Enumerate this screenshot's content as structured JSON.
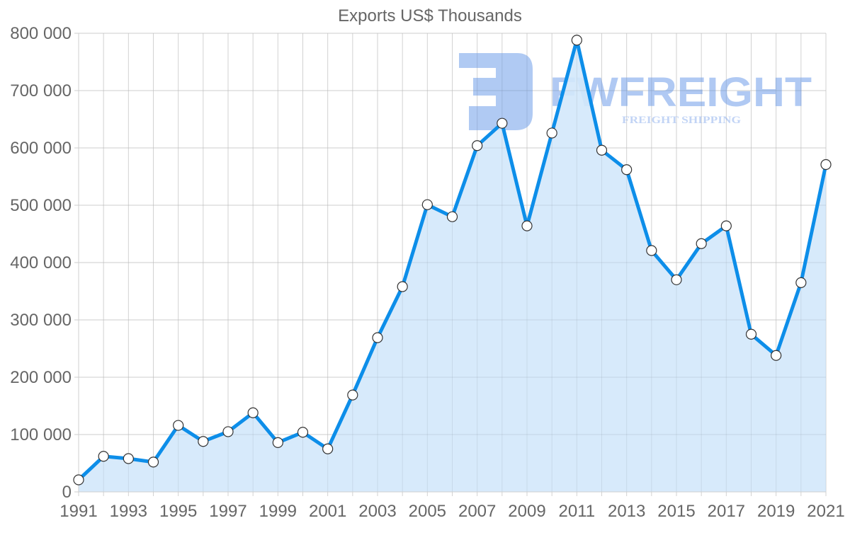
{
  "chart_data": {
    "type": "area",
    "title": "Exports US$ Thousands",
    "xlabel": "",
    "ylabel": "",
    "x": [
      1991,
      1992,
      1993,
      1994,
      1995,
      1996,
      1997,
      1998,
      1999,
      2000,
      2001,
      2002,
      2003,
      2004,
      2005,
      2006,
      2007,
      2008,
      2009,
      2010,
      2011,
      2012,
      2013,
      2014,
      2015,
      2016,
      2017,
      2018,
      2019,
      2020,
      2021
    ],
    "series": [
      {
        "name": "Exports US$ Thousands",
        "values": [
          21000,
          62000,
          58000,
          52000,
          116000,
          88000,
          105000,
          138000,
          86000,
          104000,
          75000,
          169000,
          269000,
          358000,
          501000,
          480000,
          604000,
          643000,
          464000,
          626000,
          788000,
          596000,
          562000,
          421000,
          370000,
          433000,
          464000,
          275000,
          238000,
          365000,
          571000
        ]
      }
    ],
    "x_tick_labels": [
      "1991",
      "1993",
      "1995",
      "1997",
      "1999",
      "2001",
      "2003",
      "2005",
      "2007",
      "2009",
      "2011",
      "2013",
      "2015",
      "2017",
      "2019",
      "2021"
    ],
    "y_tick_labels": [
      "0",
      "100 000",
      "200 000",
      "300 000",
      "400 000",
      "500 000",
      "600 000",
      "700 000",
      "800 000"
    ],
    "ylim": [
      0,
      800000
    ],
    "xlim": [
      1991,
      2021
    ],
    "grid": true,
    "legend": "none",
    "colors": {
      "line": "#0d8ee9",
      "fill": "#d8ebfb",
      "marker_fill": "#ffffff",
      "marker_stroke": "#333333",
      "grid": "#e0e0e0",
      "text": "#666666"
    }
  },
  "watermark": {
    "brand": "FWFREIGHT",
    "tagline": "FREIGHT SHIPPING"
  }
}
